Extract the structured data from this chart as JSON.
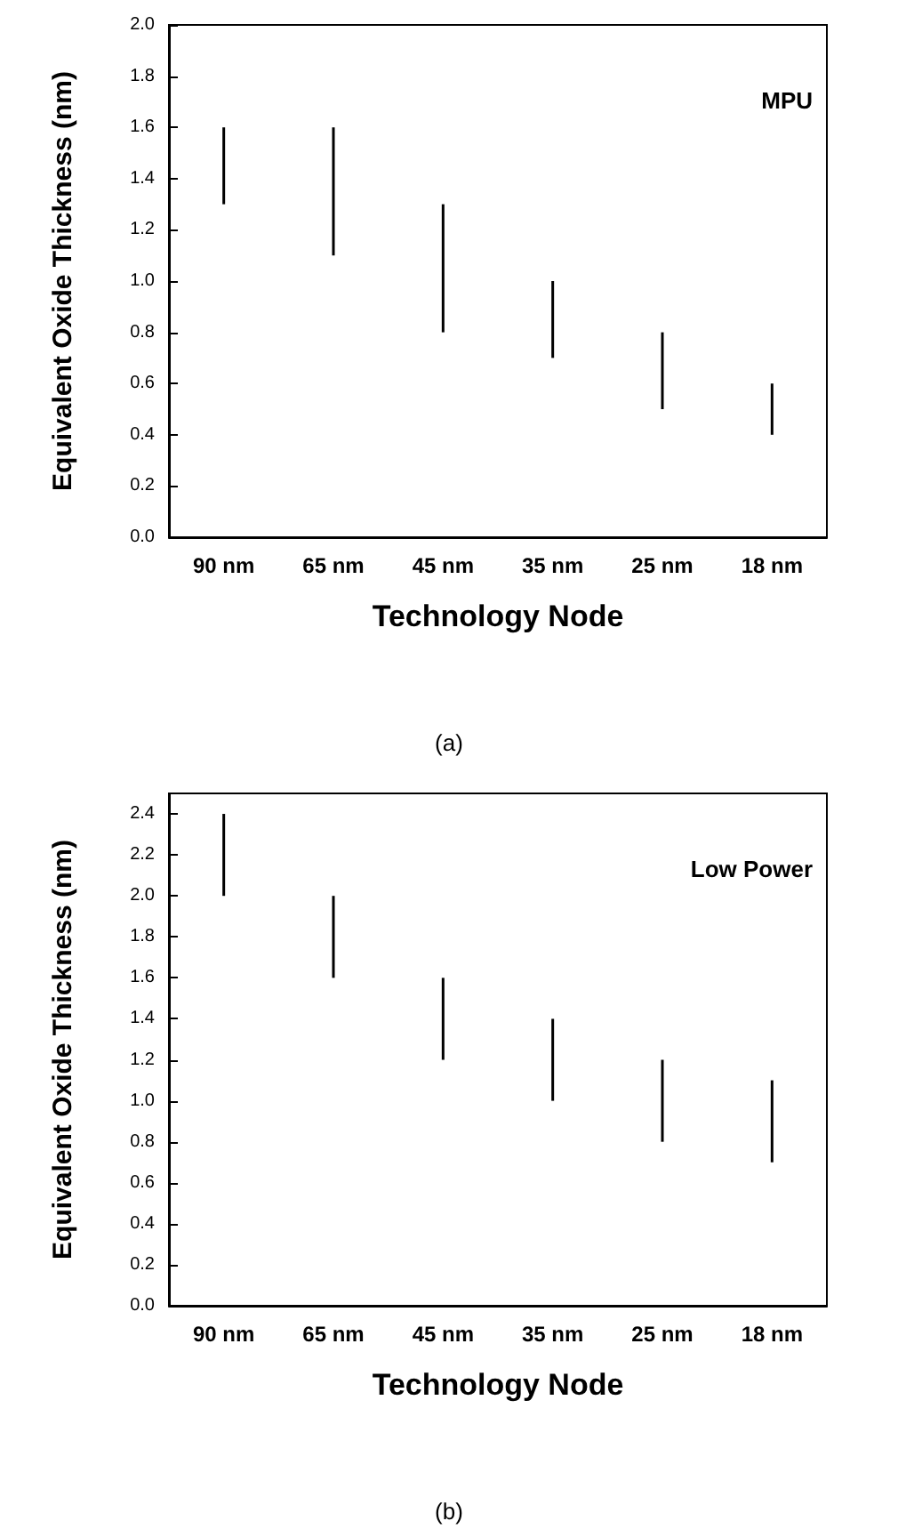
{
  "chart_data": [
    {
      "type": "bar",
      "xlabel": "Technology Node",
      "ylabel": "Equivalent Oxide Thickness (nm)",
      "categories": [
        "90 nm",
        "65 nm",
        "45 nm",
        "35 nm",
        "25 nm",
        "18 nm"
      ],
      "series": [
        {
          "color": "#000000",
          "base": [
            1.3,
            1.1,
            0.8,
            0.7,
            0.5,
            0.4
          ],
          "values": [
            0.3,
            0.5,
            0.5,
            0.3,
            0.3,
            0.2
          ]
        }
      ],
      "ylim": [
        0,
        2
      ],
      "yticks": [
        {
          "value": 0,
          "label": "0.0"
        },
        {
          "value": 0.2,
          "label": "0.2"
        },
        {
          "value": 0.4,
          "label": "0.4"
        },
        {
          "value": 0.6,
          "label": "0.6"
        },
        {
          "value": 0.8,
          "label": "0.8"
        },
        {
          "value": 1,
          "label": "1.0"
        },
        {
          "value": 1.2,
          "label": "1.2"
        },
        {
          "value": 1.4,
          "label": "1.4"
        },
        {
          "value": 1.6,
          "label": "1.6"
        },
        {
          "value": 1.8,
          "label": "1.8"
        },
        {
          "value": 2,
          "label": "2.0"
        }
      ],
      "grid": false,
      "annotations": [
        "MPU",
        "(a)"
      ]
    },
    {
      "type": "bar",
      "xlabel": "Technology Node",
      "ylabel": "Equivalent Oxide Thickness (nm)",
      "categories": [
        "90 nm",
        "65 nm",
        "45 nm",
        "35 nm",
        "25 nm",
        "18 nm"
      ],
      "series": [
        {
          "color": "#000000",
          "base": [
            2.0,
            1.6,
            1.2,
            1.0,
            0.8,
            0.7
          ],
          "values": [
            0.4,
            0.4,
            0.4,
            0.4,
            0.4,
            0.4
          ]
        }
      ],
      "ylim": [
        0,
        2.5
      ],
      "yticks": [
        {
          "value": 0,
          "label": "0.0"
        },
        {
          "value": 0.2,
          "label": "0.2"
        },
        {
          "value": 0.4,
          "label": "0.4"
        },
        {
          "value": 0.6,
          "label": "0.6"
        },
        {
          "value": 0.8,
          "label": "0.8"
        },
        {
          "value": 1,
          "label": "1.0"
        },
        {
          "value": 1.2,
          "label": "1.2"
        },
        {
          "value": 1.4,
          "label": "1.4"
        },
        {
          "value": 1.6,
          "label": "1.6"
        },
        {
          "value": 1.8,
          "label": "1.8"
        },
        {
          "value": 2,
          "label": "2.0"
        },
        {
          "value": 2.2,
          "label": "2.2"
        },
        {
          "value": 2.4,
          "label": "2.4"
        }
      ],
      "grid": false,
      "annotations": [
        "Low Power",
        "(b)"
      ]
    }
  ]
}
